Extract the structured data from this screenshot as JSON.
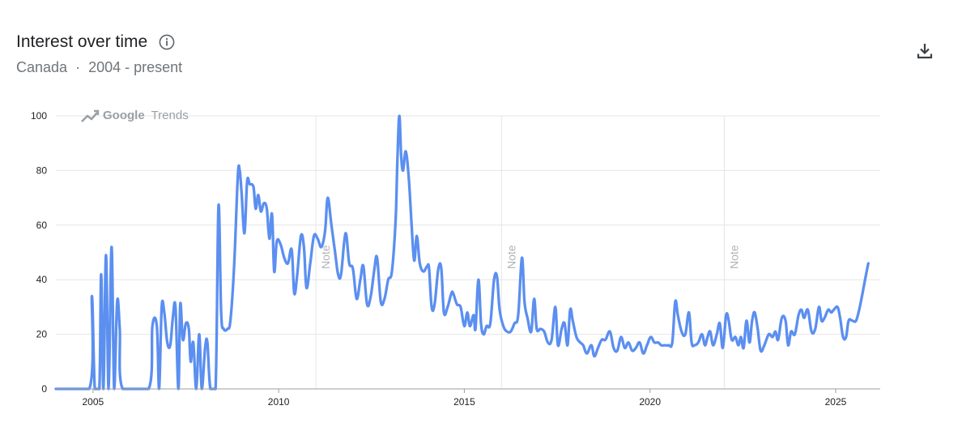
{
  "header": {
    "title": "Interest over time",
    "region": "Canada",
    "separator": "·",
    "period": "2004 - present"
  },
  "icons": {
    "info": "info-icon",
    "download": "download-icon",
    "watermark": "trending-up-icon"
  },
  "watermark": {
    "brand": "Google",
    "product": "Trends"
  },
  "notes": [
    {
      "label": "Note",
      "date": 2011.0
    },
    {
      "label": "Note",
      "date": 2016.0
    },
    {
      "label": "Note",
      "date": 2022.0
    }
  ],
  "colors": {
    "line": "#5b8ff0",
    "grid": "#e6e6e6",
    "axis": "#9e9e9e",
    "text": "#202124"
  },
  "chart_data": {
    "type": "line",
    "title": "Interest over time",
    "xlabel": "",
    "ylabel": "",
    "xlim": [
      2004.0,
      2026.2
    ],
    "ylim": [
      0,
      100
    ],
    "yticks": [
      0,
      20,
      40,
      60,
      80,
      100
    ],
    "xticks": [
      2005,
      2010,
      2015,
      2020,
      2025
    ],
    "grid": true,
    "series": [
      {
        "name": "",
        "points": [
          [
            2004.0,
            0
          ],
          [
            2004.9,
            0
          ],
          [
            2004.97,
            34
          ],
          [
            2005.05,
            0
          ],
          [
            2005.17,
            0
          ],
          [
            2005.22,
            42
          ],
          [
            2005.28,
            0
          ],
          [
            2005.35,
            49
          ],
          [
            2005.42,
            0
          ],
          [
            2005.5,
            52
          ],
          [
            2005.57,
            0
          ],
          [
            2005.65,
            32
          ],
          [
            2005.72,
            22
          ],
          [
            2005.8,
            0
          ],
          [
            2006.5,
            0
          ],
          [
            2006.6,
            23
          ],
          [
            2006.72,
            23
          ],
          [
            2006.78,
            0
          ],
          [
            2006.85,
            30
          ],
          [
            2006.92,
            28
          ],
          [
            2007.0,
            17
          ],
          [
            2007.08,
            16
          ],
          [
            2007.15,
            26
          ],
          [
            2007.22,
            30
          ],
          [
            2007.3,
            0
          ],
          [
            2007.35,
            31
          ],
          [
            2007.42,
            18
          ],
          [
            2007.5,
            24
          ],
          [
            2007.58,
            22
          ],
          [
            2007.63,
            10
          ],
          [
            2007.7,
            17
          ],
          [
            2007.78,
            0
          ],
          [
            2007.86,
            20
          ],
          [
            2007.93,
            0
          ],
          [
            2008.02,
            15
          ],
          [
            2008.08,
            17
          ],
          [
            2008.16,
            0
          ],
          [
            2008.3,
            0
          ],
          [
            2008.38,
            67
          ],
          [
            2008.45,
            28
          ],
          [
            2008.52,
            22
          ],
          [
            2008.62,
            22
          ],
          [
            2008.7,
            25
          ],
          [
            2008.8,
            45
          ],
          [
            2008.9,
            78
          ],
          [
            2008.95,
            80
          ],
          [
            2009.0,
            72
          ],
          [
            2009.08,
            57
          ],
          [
            2009.15,
            76
          ],
          [
            2009.22,
            75
          ],
          [
            2009.32,
            74
          ],
          [
            2009.38,
            66
          ],
          [
            2009.45,
            71
          ],
          [
            2009.52,
            65
          ],
          [
            2009.6,
            68
          ],
          [
            2009.68,
            66
          ],
          [
            2009.75,
            55
          ],
          [
            2009.82,
            64
          ],
          [
            2009.88,
            43
          ],
          [
            2009.95,
            54
          ],
          [
            2010.05,
            53
          ],
          [
            2010.15,
            48
          ],
          [
            2010.25,
            46
          ],
          [
            2010.35,
            51
          ],
          [
            2010.42,
            35
          ],
          [
            2010.5,
            42
          ],
          [
            2010.6,
            56
          ],
          [
            2010.68,
            52
          ],
          [
            2010.75,
            37
          ],
          [
            2010.85,
            46
          ],
          [
            2010.95,
            56
          ],
          [
            2011.05,
            55
          ],
          [
            2011.15,
            52
          ],
          [
            2011.25,
            58
          ],
          [
            2011.32,
            70
          ],
          [
            2011.42,
            60
          ],
          [
            2011.52,
            50
          ],
          [
            2011.6,
            42
          ],
          [
            2011.68,
            42
          ],
          [
            2011.8,
            57
          ],
          [
            2011.9,
            46
          ],
          [
            2012.0,
            44
          ],
          [
            2012.1,
            33
          ],
          [
            2012.2,
            40
          ],
          [
            2012.28,
            45
          ],
          [
            2012.38,
            31
          ],
          [
            2012.48,
            34
          ],
          [
            2012.58,
            44
          ],
          [
            2012.65,
            48
          ],
          [
            2012.75,
            32
          ],
          [
            2012.85,
            33
          ],
          [
            2012.95,
            40
          ],
          [
            2013.05,
            43
          ],
          [
            2013.15,
            62
          ],
          [
            2013.2,
            85
          ],
          [
            2013.25,
            100
          ],
          [
            2013.3,
            85
          ],
          [
            2013.35,
            80
          ],
          [
            2013.42,
            87
          ],
          [
            2013.5,
            78
          ],
          [
            2013.58,
            60
          ],
          [
            2013.65,
            47
          ],
          [
            2013.72,
            56
          ],
          [
            2013.8,
            46
          ],
          [
            2013.9,
            43
          ],
          [
            2014.0,
            45
          ],
          [
            2014.05,
            44
          ],
          [
            2014.12,
            30
          ],
          [
            2014.2,
            31
          ],
          [
            2014.3,
            44
          ],
          [
            2014.38,
            44
          ],
          [
            2014.45,
            28
          ],
          [
            2014.55,
            30
          ],
          [
            2014.65,
            35
          ],
          [
            2014.7,
            35
          ],
          [
            2014.8,
            31
          ],
          [
            2014.9,
            30
          ],
          [
            2015.0,
            23
          ],
          [
            2015.08,
            28
          ],
          [
            2015.15,
            23
          ],
          [
            2015.25,
            27
          ],
          [
            2015.3,
            22
          ],
          [
            2015.38,
            40
          ],
          [
            2015.45,
            24
          ],
          [
            2015.52,
            20
          ],
          [
            2015.6,
            23
          ],
          [
            2015.7,
            24
          ],
          [
            2015.8,
            40
          ],
          [
            2015.88,
            41
          ],
          [
            2015.95,
            29
          ],
          [
            2016.05,
            23
          ],
          [
            2016.15,
            21
          ],
          [
            2016.25,
            21
          ],
          [
            2016.35,
            24
          ],
          [
            2016.45,
            27
          ],
          [
            2016.55,
            48
          ],
          [
            2016.62,
            32
          ],
          [
            2016.7,
            26
          ],
          [
            2016.8,
            21
          ],
          [
            2016.88,
            33
          ],
          [
            2016.95,
            22
          ],
          [
            2017.05,
            22
          ],
          [
            2017.15,
            21
          ],
          [
            2017.25,
            17
          ],
          [
            2017.35,
            18
          ],
          [
            2017.45,
            30
          ],
          [
            2017.52,
            16
          ],
          [
            2017.62,
            22
          ],
          [
            2017.7,
            24
          ],
          [
            2017.78,
            16
          ],
          [
            2017.85,
            29
          ],
          [
            2017.92,
            25
          ],
          [
            2018.02,
            19
          ],
          [
            2018.12,
            17
          ],
          [
            2018.2,
            16
          ],
          [
            2018.3,
            13
          ],
          [
            2018.42,
            16
          ],
          [
            2018.5,
            12
          ],
          [
            2018.6,
            15
          ],
          [
            2018.7,
            18
          ],
          [
            2018.8,
            18
          ],
          [
            2018.92,
            21
          ],
          [
            2019.02,
            15
          ],
          [
            2019.12,
            14
          ],
          [
            2019.22,
            19
          ],
          [
            2019.32,
            15
          ],
          [
            2019.42,
            17
          ],
          [
            2019.52,
            14
          ],
          [
            2019.62,
            15
          ],
          [
            2019.72,
            17
          ],
          [
            2019.82,
            13
          ],
          [
            2019.92,
            16
          ],
          [
            2020.02,
            19
          ],
          [
            2020.12,
            17
          ],
          [
            2020.22,
            17
          ],
          [
            2020.3,
            16
          ],
          [
            2020.4,
            16
          ],
          [
            2020.5,
            16
          ],
          [
            2020.6,
            17
          ],
          [
            2020.68,
            32
          ],
          [
            2020.75,
            27
          ],
          [
            2020.85,
            21
          ],
          [
            2020.95,
            20
          ],
          [
            2021.05,
            28
          ],
          [
            2021.12,
            17
          ],
          [
            2021.2,
            16
          ],
          [
            2021.3,
            17
          ],
          [
            2021.4,
            20
          ],
          [
            2021.48,
            16
          ],
          [
            2021.55,
            19
          ],
          [
            2021.62,
            21
          ],
          [
            2021.7,
            16
          ],
          [
            2021.8,
            20
          ],
          [
            2021.88,
            24
          ],
          [
            2021.96,
            15
          ],
          [
            2022.05,
            27
          ],
          [
            2022.12,
            25
          ],
          [
            2022.2,
            18
          ],
          [
            2022.3,
            19
          ],
          [
            2022.38,
            16
          ],
          [
            2022.45,
            19
          ],
          [
            2022.52,
            15
          ],
          [
            2022.6,
            25
          ],
          [
            2022.68,
            17
          ],
          [
            2022.75,
            25
          ],
          [
            2022.82,
            28
          ],
          [
            2022.9,
            22
          ],
          [
            2022.98,
            14
          ],
          [
            2023.08,
            16
          ],
          [
            2023.2,
            20
          ],
          [
            2023.3,
            19
          ],
          [
            2023.38,
            21
          ],
          [
            2023.45,
            18
          ],
          [
            2023.55,
            26
          ],
          [
            2023.65,
            25
          ],
          [
            2023.72,
            16
          ],
          [
            2023.8,
            21
          ],
          [
            2023.9,
            20
          ],
          [
            2024.0,
            27
          ],
          [
            2024.08,
            29
          ],
          [
            2024.15,
            26
          ],
          [
            2024.25,
            29
          ],
          [
            2024.35,
            21
          ],
          [
            2024.45,
            22
          ],
          [
            2024.55,
            30
          ],
          [
            2024.62,
            25
          ],
          [
            2024.7,
            26
          ],
          [
            2024.8,
            29
          ],
          [
            2024.88,
            28
          ],
          [
            2024.95,
            29
          ],
          [
            2025.05,
            30
          ],
          [
            2025.12,
            26
          ],
          [
            2025.2,
            19
          ],
          [
            2025.28,
            19
          ],
          [
            2025.35,
            25
          ],
          [
            2025.45,
            25
          ],
          [
            2025.55,
            25
          ],
          [
            2025.65,
            30
          ],
          [
            2025.75,
            37
          ],
          [
            2025.82,
            42
          ],
          [
            2025.88,
            46
          ]
        ]
      }
    ]
  }
}
